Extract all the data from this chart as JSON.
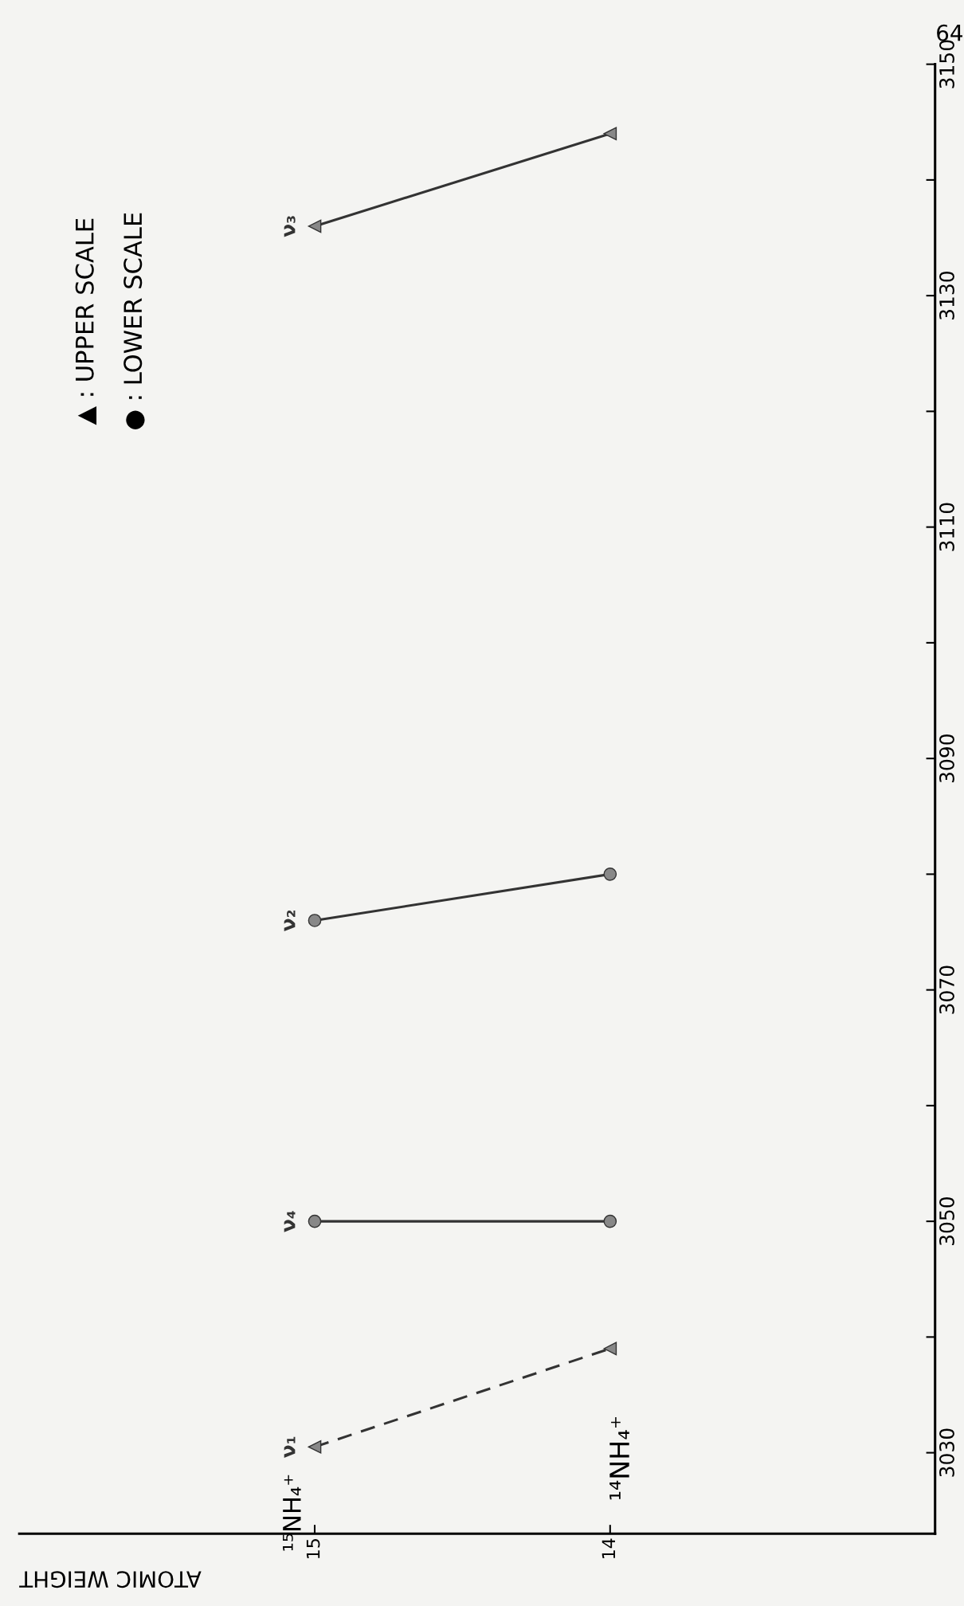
{
  "chart_data": {
    "type": "line",
    "xlabel": "ATOMIC WEIGHT",
    "x": [
      15,
      14
    ],
    "xlim": [
      16.0,
      12.9
    ],
    "xticks": [
      15,
      14
    ],
    "ylim": [
      3023,
      3150
    ],
    "yticks": [
      3030,
      {
        "value": 3040,
        "label": null
      },
      3050,
      {
        "value": 3060,
        "label": null
      },
      3070,
      {
        "value": 3080,
        "label": null
      },
      3090,
      {
        "value": 3100,
        "label": null
      },
      3110,
      {
        "value": 3120,
        "label": null
      },
      3130,
      {
        "value": 3140,
        "label": null
      },
      3150
    ],
    "grid": false,
    "legend": false,
    "series": [
      {
        "name": "ν₁",
        "color": "#333333",
        "values": [
          3030.5,
          3039
        ],
        "marker": "triangle",
        "line_style": "dashed"
      },
      {
        "name": "ν₄",
        "color": "#333333",
        "values": [
          3050,
          3050
        ],
        "marker": "circle",
        "line_style": "solid"
      },
      {
        "name": "ν₂",
        "color": "#333333",
        "values": [
          3076,
          3080
        ],
        "marker": "circle",
        "line_style": "solid"
      },
      {
        "name": "ν₃",
        "color": "#333333",
        "values": [
          3136,
          3144
        ],
        "marker": "triangle",
        "line_style": "solid"
      }
    ],
    "annotations": [
      "¹⁵NH₄⁺",
      "¹⁴NH₄⁺",
      "▲ : UPPER SCALE",
      "● : LOWER SCALE",
      "64"
    ]
  }
}
